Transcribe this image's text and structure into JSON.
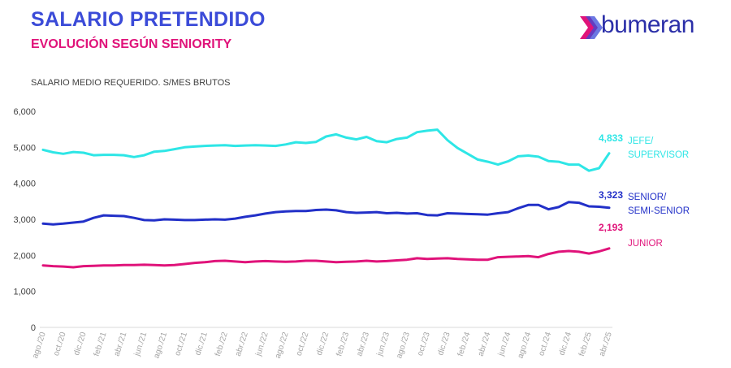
{
  "header": {
    "title": "SALARIO PRETENDIDO",
    "subtitle": "EVOLUCIÓN SEGÚN SENIORITY",
    "units_note": "SALARIO MEDIO REQUERIDO. S/MES BRUTOS"
  },
  "brand": {
    "name": "bumeran",
    "logo_icon": "bumeran-chevron-icon",
    "text_color": "#2b2fa8",
    "accent_colors": [
      "#e0137a",
      "#3b4bd8"
    ]
  },
  "chart_data": {
    "type": "line",
    "title": "SALARIO PRETENDIDO",
    "subtitle": "EVOLUCIÓN SEGÚN SENIORITY",
    "ylabel": "SALARIO MEDIO REQUERIDO. S/MES BRUTOS",
    "ylim": [
      0,
      6000
    ],
    "yticks": [
      0,
      1000,
      2000,
      3000,
      4000,
      5000,
      6000
    ],
    "ytick_labels": [
      "0",
      "1,000",
      "2,000",
      "3,000",
      "4,000",
      "5,000",
      "6,000"
    ],
    "x_tick_labels": [
      "ago./20",
      "oct./20",
      "dic./20",
      "feb./21",
      "abr./21",
      "jun./21",
      "ago./21",
      "oct./21",
      "dic./21",
      "feb./22",
      "abr./22",
      "jun./22",
      "ago./22",
      "oct./22",
      "dic./22",
      "feb./23",
      "abr./23",
      "jun./23",
      "ago./23",
      "oct./23",
      "dic./23",
      "feb./24",
      "abr./24",
      "jun./24",
      "ago./24",
      "oct./24",
      "dic./24",
      "feb./25",
      "abr./25"
    ],
    "x": [
      "ago./20",
      "sep./20",
      "oct./20",
      "nov./20",
      "dic./20",
      "ene./21",
      "feb./21",
      "mar./21",
      "abr./21",
      "may./21",
      "jun./21",
      "jul./21",
      "ago./21",
      "sep./21",
      "oct./21",
      "nov./21",
      "dic./21",
      "ene./22",
      "feb./22",
      "mar./22",
      "abr./22",
      "may./22",
      "jun./22",
      "jul./22",
      "ago./22",
      "sep./22",
      "oct./22",
      "nov./22",
      "dic./22",
      "ene./23",
      "feb./23",
      "mar./23",
      "abr./23",
      "may./23",
      "jun./23",
      "jul./23",
      "ago./23",
      "sep./23",
      "oct./23",
      "nov./23",
      "dic./23",
      "ene./24",
      "feb./24",
      "mar./24",
      "abr./24",
      "may./24",
      "jun./24",
      "jul./24",
      "ago./24",
      "sep./24",
      "oct./24",
      "nov./24",
      "dic./24",
      "ene./25",
      "feb./25",
      "mar./25",
      "abr./25"
    ],
    "grid": true,
    "series": [
      {
        "name": "JEFE/ SUPERVISOR",
        "label_lines": [
          "JEFE/",
          "SUPERVISOR"
        ],
        "color": "#2ee6e6",
        "last_label": "4,833",
        "values": [
          4930,
          4860,
          4820,
          4870,
          4850,
          4780,
          4790,
          4790,
          4780,
          4730,
          4780,
          4880,
          4900,
          4950,
          5000,
          5020,
          5040,
          5050,
          5060,
          5040,
          5050,
          5060,
          5050,
          5040,
          5080,
          5140,
          5120,
          5150,
          5300,
          5360,
          5270,
          5220,
          5290,
          5170,
          5140,
          5230,
          5270,
          5420,
          5460,
          5490,
          5200,
          4980,
          4820,
          4660,
          4600,
          4520,
          4610,
          4750,
          4770,
          4740,
          4620,
          4600,
          4520,
          4520,
          4350,
          4420,
          4833
        ]
      },
      {
        "name": "SENIOR/ SEMI-SENIOR",
        "label_lines": [
          "SENIOR/",
          "SEMI-SENIOR"
        ],
        "color": "#2230c8",
        "last_label": "3,323",
        "values": [
          2880,
          2860,
          2880,
          2910,
          2940,
          3040,
          3110,
          3100,
          3090,
          3040,
          2980,
          2970,
          3000,
          2990,
          2980,
          2980,
          2990,
          3000,
          2990,
          3020,
          3070,
          3110,
          3160,
          3200,
          3220,
          3230,
          3230,
          3260,
          3270,
          3250,
          3200,
          3180,
          3190,
          3200,
          3170,
          3180,
          3160,
          3170,
          3120,
          3110,
          3170,
          3160,
          3150,
          3140,
          3130,
          3170,
          3200,
          3310,
          3400,
          3400,
          3280,
          3340,
          3480,
          3460,
          3360,
          3350,
          3323
        ]
      },
      {
        "name": "JUNIOR",
        "label_lines": [
          "JUNIOR"
        ],
        "color": "#e0137a",
        "last_label": "2,193",
        "values": [
          1720,
          1700,
          1690,
          1670,
          1700,
          1710,
          1720,
          1720,
          1730,
          1730,
          1740,
          1730,
          1720,
          1730,
          1760,
          1790,
          1810,
          1840,
          1850,
          1830,
          1810,
          1830,
          1840,
          1830,
          1820,
          1830,
          1850,
          1850,
          1830,
          1810,
          1820,
          1830,
          1850,
          1830,
          1840,
          1860,
          1880,
          1920,
          1900,
          1910,
          1920,
          1900,
          1890,
          1880,
          1880,
          1950,
          1960,
          1970,
          1980,
          1950,
          2040,
          2100,
          2120,
          2100,
          2050,
          2110,
          2193
        ]
      }
    ]
  }
}
